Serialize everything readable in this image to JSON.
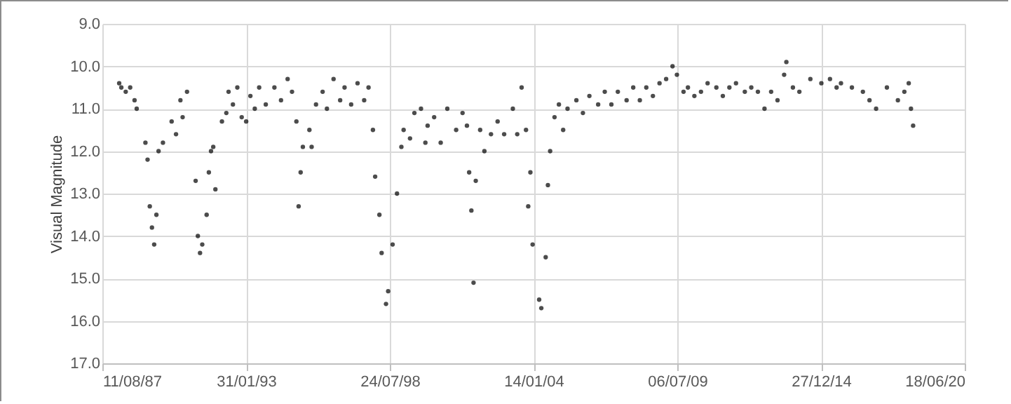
{
  "chart_data": {
    "type": "scatter",
    "ylabel": "Visual Magnitude",
    "x": [
      "1988-04",
      "1988-05",
      "1988-07",
      "1988-09",
      "1988-11",
      "1988-12",
      "1989-04",
      "1989-05",
      "1989-06",
      "1989-07",
      "1989-08",
      "1989-09",
      "1989-10",
      "1989-12",
      "1990-04",
      "1990-06",
      "1990-08",
      "1990-09",
      "1990-11",
      "1991-03",
      "1991-04",
      "1991-05",
      "1991-06",
      "1991-08",
      "1991-09",
      "1991-10",
      "1991-11",
      "1991-12",
      "1992-03",
      "1992-05",
      "1992-06",
      "1992-08",
      "1992-10",
      "1992-12",
      "1993-02",
      "1993-04",
      "1993-06",
      "1993-08",
      "1993-11",
      "1994-03",
      "1994-06",
      "1994-09",
      "1994-11",
      "1995-01",
      "1995-02",
      "1995-03",
      "1995-04",
      "1995-07",
      "1995-08",
      "1995-10",
      "1996-01",
      "1996-03",
      "1996-06",
      "1996-09",
      "1996-11",
      "1997-02",
      "1997-05",
      "1997-08",
      "1997-10",
      "1997-12",
      "1998-01",
      "1998-03",
      "1998-04",
      "1998-06",
      "1998-07",
      "1998-09",
      "1998-11",
      "1999-01",
      "1999-02",
      "1999-05",
      "1999-07",
      "1999-10",
      "1999-12",
      "2000-01",
      "2000-04",
      "2000-07",
      "2000-10",
      "2001-02",
      "2001-05",
      "2001-07",
      "2001-08",
      "2001-09",
      "2001-10",
      "2001-11",
      "2002-01",
      "2002-03",
      "2002-06",
      "2002-09",
      "2002-12",
      "2003-04",
      "2003-06",
      "2003-08",
      "2003-10",
      "2003-11",
      "2003-12",
      "2004-01",
      "2004-04",
      "2004-05",
      "2004-07",
      "2004-08",
      "2004-09",
      "2004-11",
      "2005-01",
      "2005-03",
      "2005-05",
      "2005-09",
      "2005-12",
      "2006-03",
      "2006-07",
      "2006-10",
      "2007-01",
      "2007-04",
      "2007-08",
      "2007-11",
      "2008-02",
      "2008-05",
      "2008-08",
      "2008-11",
      "2009-02",
      "2009-05",
      "2009-07",
      "2009-10",
      "2009-12",
      "2010-03",
      "2010-06",
      "2010-09",
      "2011-01",
      "2011-04",
      "2011-07",
      "2011-10",
      "2012-02",
      "2012-05",
      "2012-08",
      "2012-11",
      "2013-02",
      "2013-05",
      "2013-08",
      "2013-09",
      "2013-12",
      "2014-03",
      "2014-08",
      "2015-01",
      "2015-05",
      "2015-08",
      "2015-10",
      "2016-03",
      "2016-08",
      "2016-11",
      "2017-02",
      "2017-07",
      "2017-12",
      "2018-03",
      "2018-05",
      "2018-06",
      "2018-07"
    ],
    "series": [
      {
        "color": "#000000",
        "values": [
          10.4,
          10.5,
          10.6,
          10.5,
          10.8,
          11.0,
          11.8,
          12.2,
          13.3,
          13.8,
          14.2,
          13.5,
          12.0,
          11.8,
          11.3,
          11.6,
          10.8,
          11.2,
          10.6,
          12.7,
          14.0,
          14.4,
          14.2,
          13.5,
          12.5,
          12.0,
          11.9,
          12.9,
          11.3,
          11.1,
          10.6,
          10.9,
          10.5,
          11.2,
          11.3,
          10.7,
          11.0,
          10.5,
          10.9,
          10.5,
          10.8,
          10.3,
          10.6,
          11.3,
          13.3,
          12.5,
          11.9,
          11.5,
          11.9,
          10.9,
          10.6,
          11.0,
          10.3,
          10.8,
          10.5,
          10.9,
          10.4,
          10.8,
          10.5,
          11.5,
          12.6,
          13.5,
          14.4,
          15.6,
          15.3,
          14.2,
          13.0,
          11.9,
          11.5,
          11.7,
          11.1,
          11.0,
          11.8,
          11.4,
          11.2,
          11.8,
          11.0,
          11.5,
          11.1,
          11.4,
          12.5,
          13.4,
          15.1,
          12.7,
          11.5,
          12.0,
          11.6,
          11.3,
          11.6,
          11.0,
          11.6,
          10.5,
          11.5,
          13.3,
          12.5,
          14.2,
          15.5,
          15.7,
          14.5,
          12.8,
          12.0,
          11.2,
          10.9,
          11.5,
          11.0,
          10.8,
          11.1,
          10.7,
          10.9,
          10.6,
          10.9,
          10.6,
          10.8,
          10.5,
          10.8,
          10.5,
          10.7,
          10.4,
          10.3,
          10.0,
          10.2,
          10.6,
          10.5,
          10.7,
          10.6,
          10.4,
          10.5,
          10.7,
          10.5,
          10.4,
          10.6,
          10.5,
          10.6,
          11.0,
          10.6,
          10.8,
          10.2,
          9.9,
          10.5,
          10.6,
          10.3,
          10.4,
          10.3,
          10.5,
          10.4,
          10.5,
          10.6,
          10.8,
          11.0,
          10.5,
          10.8,
          10.6,
          10.4,
          11.0,
          11.4
        ]
      }
    ],
    "xlim": [
      "1987-08-11",
      "2020-06-18"
    ],
    "xticks": [
      {
        "value": "1987-08-11",
        "label": "11/08/87"
      },
      {
        "value": "1993-01-31",
        "label": "31/01/93"
      },
      {
        "value": "1998-07-24",
        "label": "24/07/98"
      },
      {
        "value": "2004-01-14",
        "label": "14/01/04"
      },
      {
        "value": "2009-07-06",
        "label": "06/07/09"
      },
      {
        "value": "2014-12-27",
        "label": "27/12/14"
      },
      {
        "value": "2020-06-18",
        "label": "18/06/20"
      }
    ],
    "ylim": [
      17.0,
      9.0
    ],
    "yticks": [
      {
        "value": 9,
        "label": "9.0"
      },
      {
        "value": 10,
        "label": "10.0"
      },
      {
        "value": 11,
        "label": "11.0"
      },
      {
        "value": 12,
        "label": "12.0"
      },
      {
        "value": 13,
        "label": "13.0"
      },
      {
        "value": 14,
        "label": "14.0"
      },
      {
        "value": 15,
        "label": "15.0"
      },
      {
        "value": 16,
        "label": "16.0"
      },
      {
        "value": 17,
        "label": "17.0"
      }
    ],
    "grid": true,
    "marker": "circle"
  }
}
